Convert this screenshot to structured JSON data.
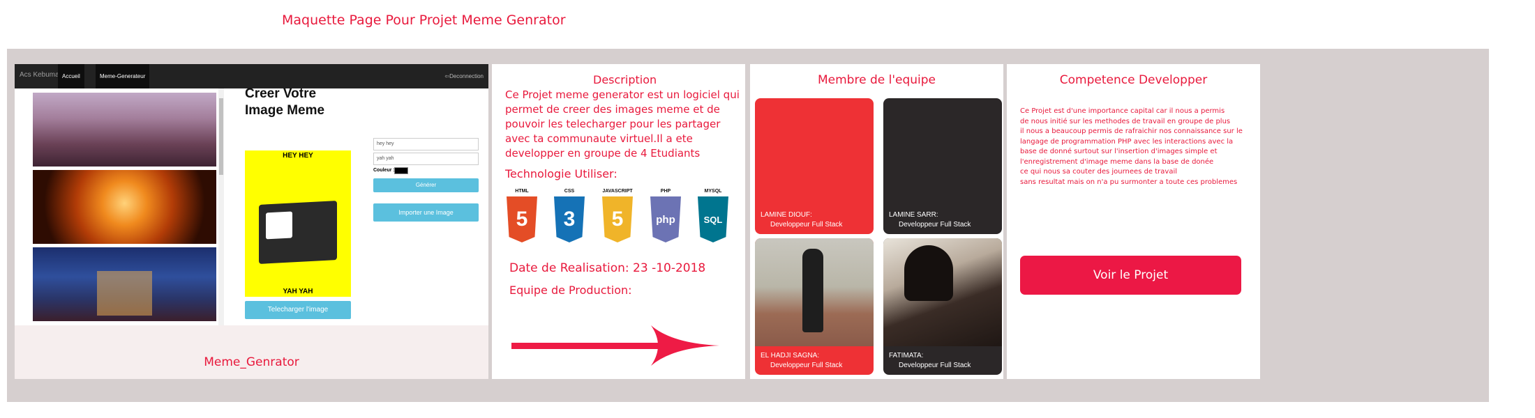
{
  "page": {
    "title": "Maquette Page Pour Projet Meme Genrator"
  },
  "app_preview": {
    "brand": "Acs Kebumak",
    "nav": [
      "Accueil",
      "Meme-Generateur"
    ],
    "logout": "Deconnection",
    "creer_title": "Creer Votre Image Meme",
    "meme_top": "HEY HEY",
    "meme_bottom": "YAH YAH",
    "field1_value": "hey hey",
    "field2_value": "yah yah",
    "couleur_label": "Couleur :",
    "btn_generer": "Générer",
    "btn_importer": "Importer une Image",
    "btn_telecharger": "Telecharger l'image",
    "caption": "Meme_Genrator"
  },
  "description": {
    "title": "Description",
    "text": "Ce Projet meme generator est un logiciel qui permet de creer des images meme et de pouvoir les telecharger pour les partager avec ta communaute virtuel.Il a ete developper en groupe de 4 Etudiants",
    "tech_label": "Technologie Utiliser:",
    "technologies": [
      {
        "name": "HTML",
        "glyph": "5",
        "color": "#e44d26"
      },
      {
        "name": "CSS",
        "glyph": "3",
        "color": "#1572b6"
      },
      {
        "name": "JAVASCRIPT",
        "glyph": "5",
        "color": "#f0b429"
      },
      {
        "name": "PHP",
        "glyph": "php",
        "color": "#6c73b4"
      },
      {
        "name": "MYSQL",
        "glyph": "SQL",
        "color": "#00758f"
      }
    ],
    "date_label": "Date de Realisation: 23 -10-2018",
    "equipe_label": "Equipe de Production:"
  },
  "membres": {
    "title": "Membre de l'equipe",
    "members": [
      {
        "name": "LAMINE DIOUF:",
        "role": "Developpeur Full Stack"
      },
      {
        "name": "LAMINE SARR:",
        "role": "Developpeur Full Stack"
      },
      {
        "name": "EL HADJI SAGNA:",
        "role": "Developpeur Full Stack"
      },
      {
        "name": "FATIMATA:",
        "role": "Developpeur Full Stack"
      }
    ]
  },
  "competence": {
    "title": "Competence Developper",
    "lines": [
      "Ce Projet est d'une importance capital car il nous a permis",
      "de nous initié sur les methodes de travail en groupe de plus",
      "il nous a beaucoup permis de rafraichir nos connaissance sur le",
      "langage de programmation PHP avec les interactions avec la",
      "base de donné surtout sur l'insertion d'images simple et",
      "l'enregistrement d'image meme dans la base de donée",
      "ce qui nous sa couter des journees de travail",
      "sans resultat mais on n'a pu surmonter a toute ces problemes"
    ],
    "button": "Voir le Projet"
  },
  "colors": {
    "accent": "#e8193c",
    "frame": "#d6cfcf",
    "button": "#ec1845"
  }
}
